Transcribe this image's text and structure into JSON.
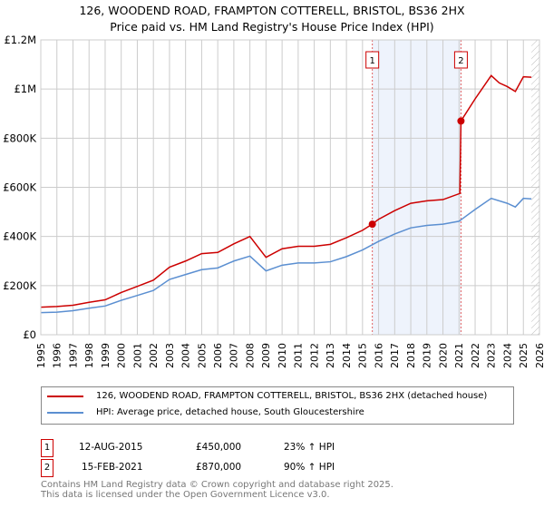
{
  "title_line1": "126, WOODEND ROAD, FRAMPTON COTTERELL, BRISTOL, BS36 2HX",
  "title_line2": "Price paid vs. HM Land Registry's House Price Index (HPI)",
  "chart_data": {
    "type": "line",
    "ylim": [
      0,
      1200000
    ],
    "xlim": [
      1995,
      2026
    ],
    "yticks": [
      {
        "v": 0,
        "label": "£0"
      },
      {
        "v": 200000,
        "label": "£200K"
      },
      {
        "v": 400000,
        "label": "£400K"
      },
      {
        "v": 600000,
        "label": "£600K"
      },
      {
        "v": 800000,
        "label": "£800K"
      },
      {
        "v": 1000000,
        "label": "£1M"
      },
      {
        "v": 1200000,
        "label": "£1.2M"
      }
    ],
    "xticks": [
      "1995",
      "1996",
      "1997",
      "1998",
      "1999",
      "2000",
      "2001",
      "2002",
      "2003",
      "2004",
      "2005",
      "2006",
      "2007",
      "2008",
      "2009",
      "2010",
      "2011",
      "2012",
      "2013",
      "2014",
      "2015",
      "2016",
      "2017",
      "2018",
      "2019",
      "2020",
      "2021",
      "2022",
      "2023",
      "2024",
      "2025",
      "2026"
    ],
    "series": [
      {
        "name": "126, WOODEND ROAD, FRAMPTON COTTERELL, BRISTOL, BS36 2HX (detached house)",
        "color": "#cc0000",
        "x": [
          1995,
          1996,
          1997,
          1998,
          1999,
          2000,
          2001,
          2002,
          2003,
          2004,
          2005,
          2006,
          2007,
          2008,
          2009,
          2010,
          2011,
          2012,
          2013,
          2014,
          2015,
          2015.6,
          2016,
          2017,
          2018,
          2019,
          2020,
          2021.05,
          2021.12,
          2022,
          2023,
          2023.5,
          2024,
          2024.5,
          2025,
          2025.5
        ],
        "y": [
          112000,
          115000,
          120000,
          132000,
          142000,
          172000,
          197000,
          222000,
          275000,
          300000,
          330000,
          335000,
          370000,
          400000,
          315000,
          350000,
          360000,
          360000,
          368000,
          395000,
          425000,
          450000,
          470000,
          505000,
          535000,
          545000,
          550000,
          575000,
          870000,
          960000,
          1055000,
          1025000,
          1010000,
          990000,
          1050000,
          1048000
        ]
      },
      {
        "name": "HPI: Average price, detached house, South Gloucestershire",
        "color": "#5b8fd1",
        "x": [
          1995,
          1996,
          1997,
          1998,
          1999,
          2000,
          2001,
          2002,
          2003,
          2004,
          2005,
          2006,
          2007,
          2008,
          2009,
          2010,
          2011,
          2012,
          2013,
          2014,
          2015,
          2016,
          2017,
          2018,
          2019,
          2020,
          2021,
          2022,
          2023,
          2024,
          2024.5,
          2025,
          2025.5
        ],
        "y": [
          90000,
          92000,
          98000,
          108000,
          117000,
          140000,
          160000,
          180000,
          225000,
          245000,
          265000,
          272000,
          300000,
          320000,
          260000,
          283000,
          292000,
          292000,
          297000,
          318000,
          345000,
          380000,
          410000,
          435000,
          445000,
          450000,
          462000,
          510000,
          555000,
          535000,
          520000,
          555000,
          553000
        ]
      }
    ],
    "sales": [
      {
        "id": "1",
        "x": 2015.61,
        "y": 450000
      },
      {
        "id": "2",
        "x": 2021.12,
        "y": 870000
      }
    ],
    "shaded_range": [
      2015.61,
      2021.12
    ],
    "forecast_from": 2025.5
  },
  "legend": {
    "red": "126, WOODEND ROAD, FRAMPTON COTTERELL, BRISTOL, BS36 2HX (detached house)",
    "blue": "HPI: Average price, detached house, South Gloucestershire"
  },
  "transactions": [
    {
      "id": "1",
      "date": "12-AUG-2015",
      "price": "£450,000",
      "hpi": "23% ↑ HPI"
    },
    {
      "id": "2",
      "date": "15-FEB-2021",
      "price": "£870,000",
      "hpi": "90% ↑ HPI"
    }
  ],
  "footer1": "Contains HM Land Registry data © Crown copyright and database right 2025.",
  "footer2": "This data is licensed under the Open Government Licence v3.0."
}
